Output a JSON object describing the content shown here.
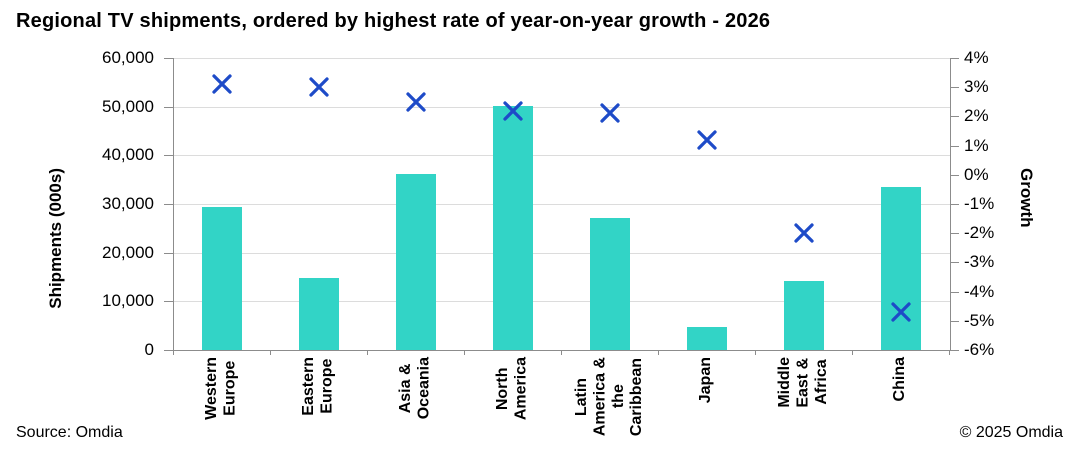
{
  "page": {
    "title": "Regional TV shipments, ordered by highest rate of year-on-year growth - 2026",
    "source": "Source: Omdia",
    "copyright": "© 2025 Omdia"
  },
  "chart_data": {
    "type": "combo",
    "subtype": "bar + scatter (x markers), dual axis",
    "title": "Regional TV shipments, ordered by highest rate of year-on-year growth - 2026",
    "categories": [
      "Western\nEurope",
      "Eastern\nEurope",
      "Asia &\nOceania",
      "North\nAmerica",
      "Latin\nAmerica &\nthe\nCaribbean",
      "Japan",
      "Middle\nEast &\nAfrica",
      "China"
    ],
    "series": [
      {
        "name": "Shipments (000s)",
        "type": "bar",
        "axis": "left",
        "color": "#32d4c6",
        "values": [
          29300,
          14700,
          36100,
          50200,
          27200,
          4800,
          14100,
          33400
        ]
      },
      {
        "name": "Growth",
        "type": "scatter",
        "marker": "x",
        "axis": "right",
        "color": "#1e4bc8",
        "values": [
          3.1,
          3.0,
          2.5,
          2.2,
          2.1,
          1.2,
          -2.0,
          -4.7
        ]
      }
    ],
    "left_axis": {
      "label": "Shipments (000s)",
      "min": 0,
      "max": 60000,
      "step": 10000,
      "tick_labels": [
        "60,000",
        "50,000",
        "40,000",
        "30,000",
        "20,000",
        "10,000",
        "0"
      ]
    },
    "right_axis": {
      "label": "Growth",
      "min": -6,
      "max": 4,
      "step": 1,
      "tick_labels": [
        "4%",
        "3%",
        "2%",
        "1%",
        "0%",
        "-1%",
        "-2%",
        "-3%",
        "-4%",
        "-5%",
        "-6%"
      ],
      "unit": "%"
    },
    "grid": {
      "horizontal": true,
      "aligned_to": "left_axis_ticks",
      "color": "#dcdcdc"
    },
    "legend": "none",
    "colors": {
      "bar": "#32d4c6",
      "marker": "#1e4bc8",
      "axis": "#8c8c8c",
      "grid": "#dcdcdc",
      "text": "#000000",
      "background": "#ffffff"
    }
  }
}
